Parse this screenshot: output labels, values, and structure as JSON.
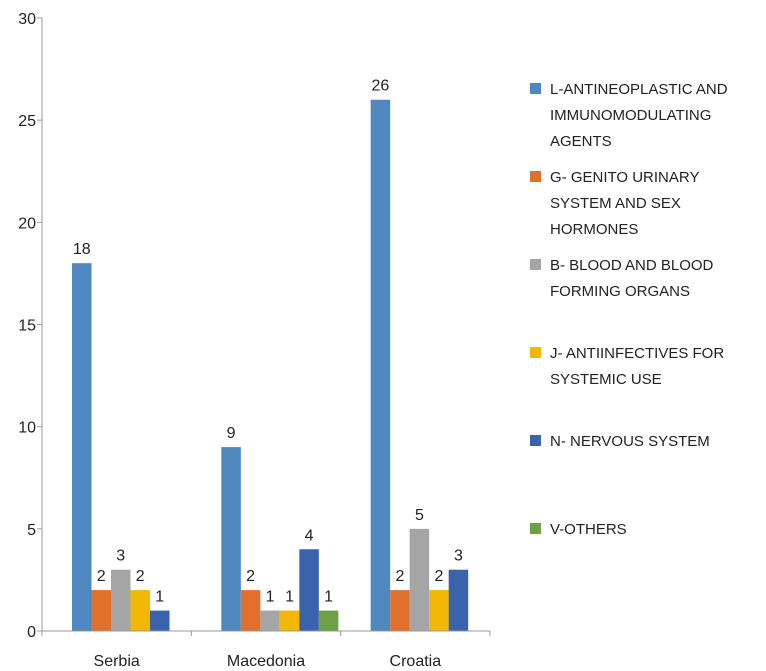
{
  "chart_data": {
    "type": "bar",
    "title": "",
    "xlabel": "",
    "ylabel": "",
    "ylim": [
      0,
      30
    ],
    "yticks": [
      0,
      5,
      10,
      15,
      20,
      25,
      30
    ],
    "grid": false,
    "legend_position": "right",
    "categories": [
      "Serbia",
      "Macedonia",
      "Croatia"
    ],
    "series": [
      {
        "name": "L-ANTINEOPLASTIC AND IMMUNOMODULATING AGENTS",
        "legend_lines": [
          "L-ANTINEOPLASTIC AND",
          "IMMUNOMODULATING",
          "AGENTS"
        ],
        "color": "#4f87c0",
        "values": [
          18,
          9,
          26
        ]
      },
      {
        "name": "G- GENITO URINARY SYSTEM AND SEX HORMONES",
        "legend_lines": [
          "G- GENITO URINARY",
          "SYSTEM AND SEX",
          "HORMONES"
        ],
        "color": "#e0702b",
        "values": [
          2,
          2,
          2
        ]
      },
      {
        "name": "B- BLOOD AND BLOOD FORMING ORGANS",
        "legend_lines": [
          "B- BLOOD AND BLOOD",
          "FORMING ORGANS"
        ],
        "color": "#a5a5a5",
        "values": [
          3,
          1,
          5
        ]
      },
      {
        "name": "J- ANTIINFECTIVES FOR SYSTEMIC USE",
        "legend_lines": [
          "J- ANTIINFECTIVES FOR",
          "SYSTEMIC USE"
        ],
        "color": "#f2b705",
        "values": [
          2,
          1,
          2
        ]
      },
      {
        "name": "N- NERVOUS SYSTEM",
        "legend_lines": [
          "N- NERVOUS SYSTEM"
        ],
        "color": "#3b62ad",
        "values": [
          1,
          4,
          3
        ]
      },
      {
        "name": "V-OTHERS",
        "legend_lines": [
          "V-OTHERS"
        ],
        "color": "#6ea046",
        "values": [
          null,
          1,
          null
        ]
      }
    ]
  }
}
